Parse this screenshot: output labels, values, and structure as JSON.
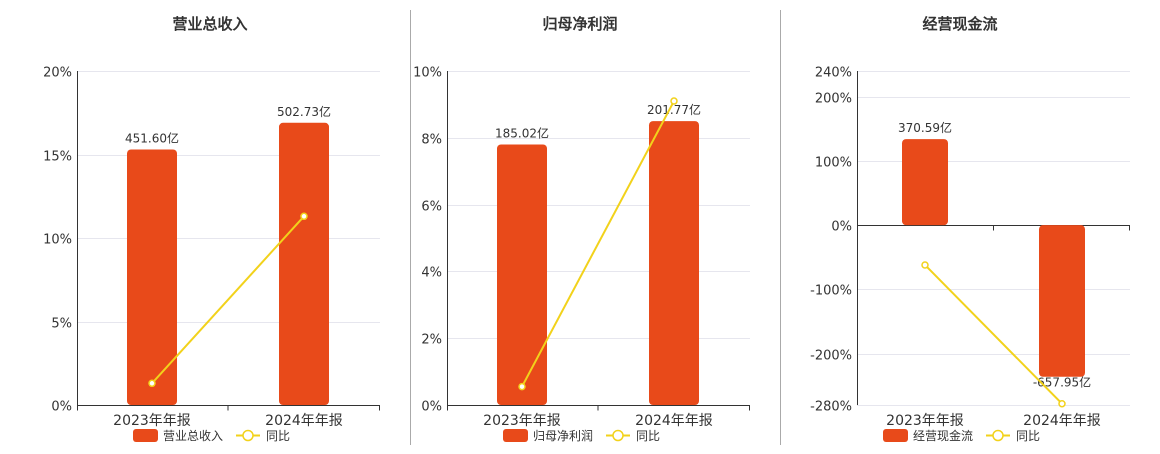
{
  "colors": {
    "bar": "#E84A1A",
    "line": "#F2D21B",
    "grid": "#E6E6EE",
    "axis": "#333333",
    "divider": "#AAAAAA",
    "text": "#333333"
  },
  "chart_data": [
    {
      "type": "bar",
      "title": "营业总收入",
      "categories": [
        "2023年年报",
        "2024年年报"
      ],
      "series": [
        {
          "name": "营业总收入",
          "type": "bar",
          "values": [
            15.3,
            16.9
          ],
          "labels": [
            "451.60亿",
            "502.73亿"
          ]
        },
        {
          "name": "同比",
          "type": "line",
          "values": [
            1.3,
            11.3
          ]
        }
      ],
      "yticks": [
        "0%",
        "5%",
        "10%",
        "15%",
        "20%"
      ],
      "yvals": [
        0,
        5,
        10,
        15,
        20
      ],
      "ylim": [
        0,
        20
      ],
      "legend": [
        "营业总收入",
        "同比"
      ]
    },
    {
      "type": "bar",
      "title": "归母净利润",
      "categories": [
        "2023年年报",
        "2024年年报"
      ],
      "series": [
        {
          "name": "归母净利润",
          "type": "bar",
          "values": [
            7.8,
            8.5
          ],
          "labels": [
            "185.02亿",
            "201.77亿"
          ]
        },
        {
          "name": "同比",
          "type": "line",
          "values": [
            0.55,
            9.1
          ]
        }
      ],
      "yticks": [
        "0%",
        "2%",
        "4%",
        "6%",
        "8%",
        "10%"
      ],
      "yvals": [
        0,
        2,
        4,
        6,
        8,
        10
      ],
      "ylim": [
        0,
        10
      ],
      "legend": [
        "归母净利润",
        "同比"
      ]
    },
    {
      "type": "bar",
      "title": "经营现金流",
      "categories": [
        "2023年年报",
        "2024年年报"
      ],
      "series": [
        {
          "name": "经营现金流",
          "type": "bar",
          "values": [
            134,
            -236
          ],
          "labels": [
            "370.59亿",
            "-657.95亿"
          ]
        },
        {
          "name": "同比",
          "type": "line",
          "values": [
            -62,
            -278
          ]
        }
      ],
      "yticks": [
        "-280%",
        "-200%",
        "-100%",
        "0%",
        "100%",
        "200%",
        "240%"
      ],
      "yvals": [
        -280,
        -200,
        -100,
        0,
        100,
        200,
        240
      ],
      "ylim": [
        -280,
        240
      ],
      "legend": [
        "经营现金流",
        "同比"
      ]
    }
  ]
}
